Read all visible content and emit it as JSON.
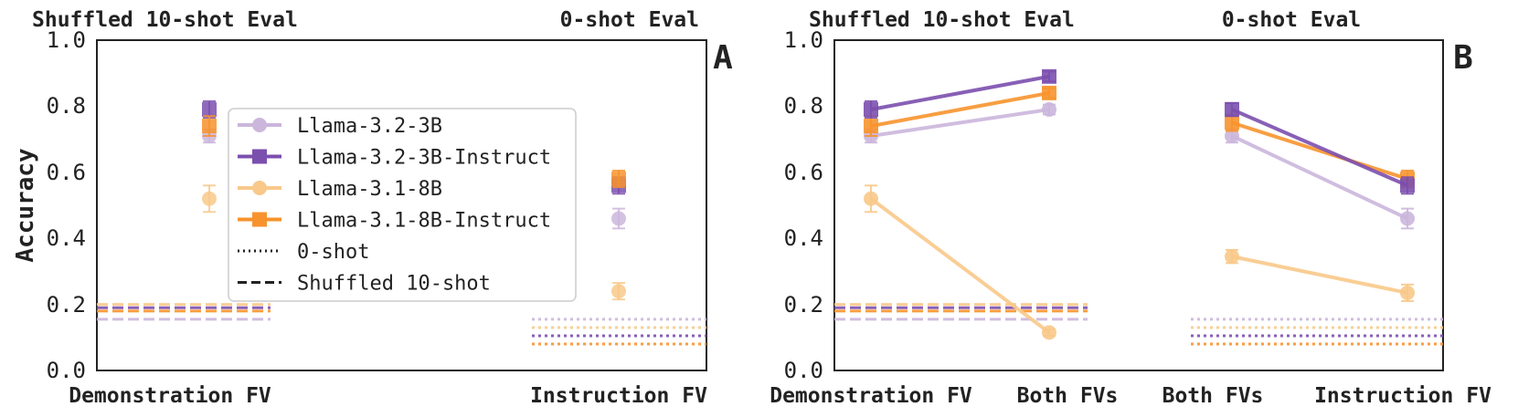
{
  "colors": {
    "llama32_3b": "#cbb6dc",
    "llama32_3b_instruct": "#7b4fae",
    "llama31_8b": "#f8c98a",
    "llama31_8b_instruct": "#f7932d"
  },
  "chart_data": [
    {
      "panel": "A",
      "type": "scatter",
      "ylabel": "Accuracy",
      "ylim": [
        0.0,
        1.0
      ],
      "yticks": [
        "0.0",
        "0.2",
        "0.4",
        "0.6",
        "0.8",
        "1.0"
      ],
      "categories": [
        "Demonstration FV",
        "Instruction FV"
      ],
      "top_titles": [
        "Shuffled 10-shot Eval",
        "0-shot Eval"
      ],
      "series": [
        {
          "name": "Llama-3.2-3B",
          "color_key": "llama32_3b",
          "marker": "circle",
          "line": false,
          "values": [
            0.71,
            0.46
          ],
          "errors": [
            0.02,
            0.03
          ]
        },
        {
          "name": "Llama-3.2-3B-Instruct",
          "color_key": "llama32_3b_instruct",
          "marker": "square",
          "line": false,
          "values": [
            0.79,
            0.56
          ],
          "errors": [
            0.025,
            0.025
          ]
        },
        {
          "name": "Llama-3.1-8B",
          "color_key": "llama31_8b",
          "marker": "circle",
          "line": false,
          "values": [
            0.52,
            0.24
          ],
          "errors": [
            0.04,
            0.025
          ]
        },
        {
          "name": "Llama-3.1-8B-Instruct",
          "color_key": "llama31_8b_instruct",
          "marker": "square",
          "line": false,
          "values": [
            0.74,
            0.58
          ],
          "errors": [
            0.03,
            0.025
          ]
        }
      ],
      "baselines": [
        {
          "style": "dashed",
          "label": "Shuffled 10-shot",
          "at": "Demonstration FV",
          "values": {
            "llama32_3b": 0.155,
            "llama32_3b_instruct": 0.19,
            "llama31_8b": 0.2,
            "llama31_8b_instruct": 0.18
          }
        },
        {
          "style": "dotted",
          "label": "0-shot",
          "at": "Instruction FV",
          "values": {
            "llama32_3b": 0.155,
            "llama32_3b_instruct": 0.105,
            "llama31_8b": 0.13,
            "llama31_8b_instruct": 0.08
          }
        }
      ],
      "legend": {
        "placement": "center-left",
        "entries": [
          "Llama-3.2-3B",
          "Llama-3.2-3B-Instruct",
          "Llama-3.1-8B",
          "Llama-3.1-8B-Instruct",
          "0-shot",
          "Shuffled 10-shot"
        ]
      }
    },
    {
      "panel": "B",
      "type": "line",
      "ylim": [
        0.0,
        1.0
      ],
      "yticks": [
        "0.0",
        "0.2",
        "0.4",
        "0.6",
        "0.8",
        "1.0"
      ],
      "categories": [
        "Demonstration FV",
        "Both FVs",
        "Both FVs",
        "Instruction FV"
      ],
      "top_titles": [
        "Shuffled 10-shot Eval",
        "0-shot Eval"
      ],
      "series": [
        {
          "name": "Llama-3.2-3B",
          "color_key": "llama32_3b",
          "marker": "circle",
          "segments": [
            [
              0.71,
              0.79
            ],
            [
              0.71,
              0.46
            ]
          ],
          "errors": [
            [
              0.02,
              0.015
            ],
            [
              0.02,
              0.03
            ]
          ]
        },
        {
          "name": "Llama-3.2-3B-Instruct",
          "color_key": "llama32_3b_instruct",
          "marker": "square",
          "segments": [
            [
              0.79,
              0.89
            ],
            [
              0.79,
              0.56
            ]
          ],
          "errors": [
            [
              0.025,
              0.015
            ],
            [
              0.02,
              0.025
            ]
          ]
        },
        {
          "name": "Llama-3.1-8B",
          "color_key": "llama31_8b",
          "marker": "circle",
          "segments": [
            [
              0.52,
              0.115
            ],
            [
              0.345,
              0.235
            ]
          ],
          "errors": [
            [
              0.04,
              0.01
            ],
            [
              0.02,
              0.025
            ]
          ]
        },
        {
          "name": "Llama-3.1-8B-Instruct",
          "color_key": "llama31_8b_instruct",
          "marker": "square",
          "segments": [
            [
              0.74,
              0.84
            ],
            [
              0.75,
              0.58
            ]
          ],
          "errors": [
            [
              0.03,
              0.015
            ],
            [
              0.025,
              0.025
            ]
          ]
        }
      ],
      "baselines": [
        {
          "style": "dashed",
          "label": "Shuffled 10-shot",
          "values": {
            "llama32_3b": 0.155,
            "llama32_3b_instruct": 0.19,
            "llama31_8b": 0.2,
            "llama31_8b_instruct": 0.18
          }
        },
        {
          "style": "dotted",
          "label": "0-shot",
          "values": {
            "llama32_3b": 0.155,
            "llama32_3b_instruct": 0.105,
            "llama31_8b": 0.13,
            "llama31_8b_instruct": 0.08
          }
        }
      ]
    }
  ]
}
